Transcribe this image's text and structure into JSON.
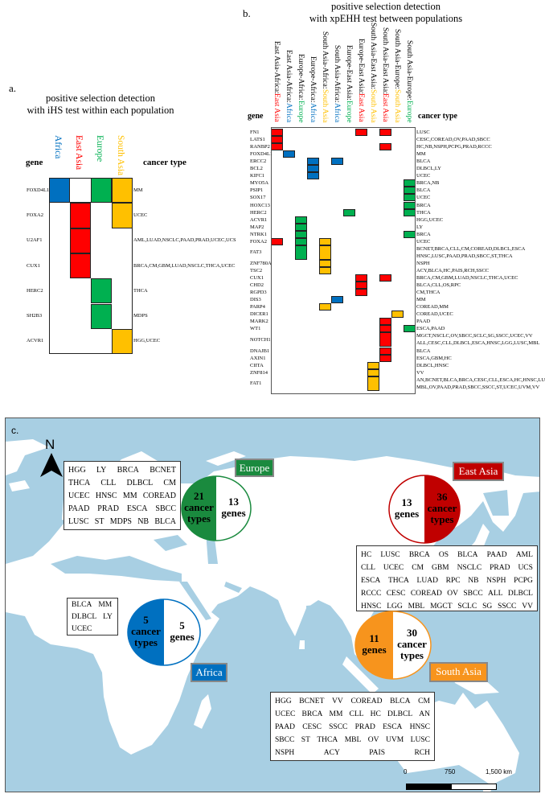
{
  "colors": {
    "africa": "#0070c0",
    "east_asia": "#ff0000",
    "europe": "#00b050",
    "south_asia": "#ffc000",
    "map_water": "#a8cfe3",
    "map_europe": "#1a8a3e",
    "map_africa": "#0070c0",
    "map_east_asia": "#c00000",
    "map_south_asia": "#f7941d"
  },
  "panel_a": {
    "label": "a.",
    "title": [
      "positive selection detection",
      "with iHS test within each population"
    ],
    "gene_header": "gene",
    "cancer_header": "cancer type",
    "columns": [
      {
        "name": "Africa",
        "color": "#0070c0"
      },
      {
        "name": "East Asia",
        "color": "#ff0000"
      },
      {
        "name": "Europe",
        "color": "#00b050"
      },
      {
        "name": "South Asia",
        "color": "#ffc000"
      }
    ],
    "rows": [
      {
        "gene": "FOXD4L1",
        "cancer": "MM",
        "cols": [
          0,
          2,
          3
        ]
      },
      {
        "gene": "FOXA2",
        "cancer": "UCEC",
        "cols": [
          1,
          3
        ]
      },
      {
        "gene": "U2AF1",
        "cancer": "AML,LUAD,NSCLC,PAAD,PRAD,UCEC,UCS",
        "cols": [
          1
        ]
      },
      {
        "gene": "CUX1",
        "cancer": "BRCA,CM,GBM,LUAD,NSCLC,THCA,UCEC",
        "cols": [
          1
        ]
      },
      {
        "gene": "HERC2",
        "cancer": "THCA",
        "cols": [
          2
        ]
      },
      {
        "gene": "SH2B3",
        "cancer": "MDPS",
        "cols": [
          2
        ]
      },
      {
        "gene": "ACVR1",
        "cancer": "HGG,UCEC",
        "cols": [
          3
        ]
      }
    ]
  },
  "panel_b": {
    "label": "b.",
    "title": [
      "positive selection detection",
      "with xpEHH test between populations"
    ],
    "gene_header": "gene",
    "cancer_header": "cancer type",
    "columns": [
      {
        "pair": "East Asia-Africa: ",
        "pop": "East Asia",
        "color": "#ff0000"
      },
      {
        "pair": "East Asia-Africa: ",
        "pop": "Africa",
        "color": "#0070c0"
      },
      {
        "pair": "Europe-Africa: ",
        "pop": "Europe",
        "color": "#00b050"
      },
      {
        "pair": "Europe-Africa: ",
        "pop": "Africa",
        "color": "#0070c0"
      },
      {
        "pair": "South Asia-Africa: ",
        "pop": "South Asia",
        "color": "#ffc000"
      },
      {
        "pair": "South Asia-Africa: ",
        "pop": "Africa",
        "color": "#0070c0"
      },
      {
        "pair": "Europe-East Asia: ",
        "pop": "Europe",
        "color": "#00b050"
      },
      {
        "pair": "Europe-East Asia: ",
        "pop": "East Asia",
        "color": "#ff0000"
      },
      {
        "pair": "South Asia-East Asia: ",
        "pop": "South Asia",
        "color": "#ffc000"
      },
      {
        "pair": "South Asia-East Asia: ",
        "pop": "East Asia",
        "color": "#ff0000"
      },
      {
        "pair": "South Asia-Europe: ",
        "pop": "South Asia",
        "color": "#ffc000"
      },
      {
        "pair": "South Asia-Europe: ",
        "pop": "Europe",
        "color": "#00b050"
      }
    ],
    "rows": [
      {
        "gene": "FN1",
        "cancer": [
          "LUSC"
        ],
        "cols": [
          0,
          7,
          9
        ]
      },
      {
        "gene": "LATS1",
        "cancer": [
          "CESC,COREAD,OV,PAAD,SBCC"
        ],
        "cols": [
          0
        ]
      },
      {
        "gene": "RANBP2",
        "cancer": [
          "HC,NB,NSPH,PCPG,PRAD,RCCC"
        ],
        "cols": [
          0,
          9
        ]
      },
      {
        "gene": "FOXD4L1",
        "cancer": [
          "MM"
        ],
        "cols": [
          1
        ]
      },
      {
        "gene": "ERCC2",
        "cancer": [
          "BLCA"
        ],
        "cols": [
          3,
          5
        ]
      },
      {
        "gene": "BCL2",
        "cancer": [
          "DLBCL,LY"
        ],
        "cols": [
          3
        ]
      },
      {
        "gene": "KIFC1",
        "cancer": [
          "UCEC"
        ],
        "cols": [
          3
        ]
      },
      {
        "gene": "MYO5A",
        "cancer": [
          "BRCA,NB"
        ],
        "cols": [
          11
        ]
      },
      {
        "gene": "PSIP1",
        "cancer": [
          "BLCA"
        ],
        "cols": [
          11
        ]
      },
      {
        "gene": "SOX17",
        "cancer": [
          "UCEC"
        ],
        "cols": [
          11
        ]
      },
      {
        "gene": "HOXC13",
        "cancer": [
          "BRCA"
        ],
        "cols": [
          11
        ]
      },
      {
        "gene": "HERC2",
        "cancer": [
          "THCA"
        ],
        "cols": [
          6,
          11
        ]
      },
      {
        "gene": "ACVR1",
        "cancer": [
          "HGG,UCEC"
        ],
        "cols": [
          2
        ]
      },
      {
        "gene": "MAP2",
        "cancer": [
          "LY"
        ],
        "cols": [
          2
        ]
      },
      {
        "gene": "NTRK1",
        "cancer": [
          "BRCA"
        ],
        "cols": [
          2,
          11
        ]
      },
      {
        "gene": "FOXA2",
        "cancer": [
          "UCEC"
        ],
        "cols": [
          0,
          2,
          4
        ]
      },
      {
        "gene": "FAT3",
        "cancer": [
          "BCNET,BRCA,CLL,CM,COREAD,DLBCL,ESCA",
          "HNSC,LUSC,PAAD,PRAD,SBCC,ST,THCA"
        ],
        "cols": [
          2,
          4
        ]
      },
      {
        "gene": "ZNF780A",
        "cancer": [
          "NSPH"
        ],
        "cols": [
          4
        ]
      },
      {
        "gene": "TSC2",
        "cancer": [
          "ACY,BLCA,HC,PAIS,RCH,SSCC"
        ],
        "cols": [
          4
        ]
      },
      {
        "gene": "CUX1",
        "cancer": [
          "BRCA,CM,GBM,LUAD,NSCLC,THCA,UCEC"
        ],
        "cols": [
          7,
          9
        ]
      },
      {
        "gene": "CHD2",
        "cancer": [
          "BLCA,CLL,OS,RPC"
        ],
        "cols": [
          7
        ]
      },
      {
        "gene": "RGPD3",
        "cancer": [
          "CM,THCA"
        ],
        "cols": [
          7
        ]
      },
      {
        "gene": "DIS3",
        "cancer": [
          "MM"
        ],
        "cols": [
          5
        ]
      },
      {
        "gene": "PARP4",
        "cancer": [
          "COREAD,MM"
        ],
        "cols": [
          4
        ]
      },
      {
        "gene": "DICER1",
        "cancer": [
          "COREAD,UCEC"
        ],
        "cols": [
          10
        ]
      },
      {
        "gene": "MARK2",
        "cancer": [
          "PAAD"
        ],
        "cols": [
          9
        ]
      },
      {
        "gene": "WT1",
        "cancer": [
          "ESCA,PAAD"
        ],
        "cols": [
          9,
          11
        ]
      },
      {
        "gene": "NOTCH1",
        "cancer": [
          "MGCT,NSCLC,OV,SBCC,SCLC,SG,SSCC,UCEC,VV",
          "ALL,CESC,CLL,DLBCL,ESCA,HNSC,LGG,LUSC,MBL"
        ],
        "cols": [
          9
        ]
      },
      {
        "gene": "DNAJB1",
        "cancer": [
          "BLCA"
        ],
        "cols": [
          9
        ]
      },
      {
        "gene": "AXIN1",
        "cancer": [
          "ESCA,GBM,HC"
        ],
        "cols": [
          9
        ]
      },
      {
        "gene": "CIITA",
        "cancer": [
          "DLBCL,HNSC"
        ],
        "cols": [
          8
        ]
      },
      {
        "gene": "ZNF814",
        "cancer": [
          "VV"
        ],
        "cols": [
          8
        ]
      },
      {
        "gene": "FAT1",
        "cancer": [
          "AN,BCNET,BLCA,BRCA,CESC,CLL,ESCA,HC,HNSC,LUSC",
          "MBL,OV,PAAD,PRAD,SBCC,SSCC,ST,UCEC,UVM,VV"
        ],
        "cols": [
          8
        ]
      }
    ]
  },
  "panel_c": {
    "label": "c.",
    "north": "N",
    "europe": {
      "name": "Europe",
      "genes": "13",
      "genes_label": "genes",
      "cancer": "21",
      "cancer_label": [
        "cancer",
        "types"
      ],
      "list": [
        [
          "HGG",
          "LY",
          "BRCA",
          "BCNET"
        ],
        [
          "THCA",
          "CLL",
          "DLBCL",
          "CM"
        ],
        [
          "UCEC",
          "HNSC",
          "MM",
          "COREAD"
        ],
        [
          "PAAD",
          "PRAD",
          "ESCA",
          "SBCC"
        ],
        [
          "LUSC",
          "ST",
          "MDPS",
          "NB",
          "BLCA"
        ]
      ]
    },
    "east_asia": {
      "name": "East Asia",
      "genes": "13",
      "genes_label": "genes",
      "cancer": "36",
      "cancer_label": [
        "cancer",
        "types"
      ],
      "list": [
        [
          "HC",
          "LUSC",
          "BRCA",
          "OS",
          "BLCA",
          "PAAD",
          "AML"
        ],
        [
          "CLL",
          "UCEC",
          "CM",
          "GBM",
          "NSCLC",
          "PRAD",
          "UCS"
        ],
        [
          "ESCA",
          "THCA",
          "LUAD",
          "RPC",
          "NB",
          "NSPH",
          "PCPG"
        ],
        [
          "RCCC",
          "CESC",
          "COREAD",
          "OV",
          "SBCC",
          "ALL",
          "DLBCL"
        ],
        [
          "HNSC",
          "LGG",
          "MBL",
          "MGCT",
          "SCLC",
          "SG",
          "SSCC",
          "VV"
        ]
      ]
    },
    "africa": {
      "name": "Africa",
      "genes": "5",
      "genes_label": "genes",
      "cancer": "5",
      "cancer_label": [
        "cancer",
        "types"
      ],
      "list": [
        [
          "BLCA",
          "MM"
        ],
        [
          "DLBCL",
          "LY"
        ],
        [
          "UCEC"
        ]
      ]
    },
    "south_asia": {
      "name": "South Asia",
      "genes": "11",
      "genes_label": "genes",
      "cancer": "30",
      "cancer_label": [
        "cancer",
        "types"
      ],
      "list": [
        [
          "HGG",
          "BCNET",
          "VV",
          "COREAD",
          "BLCA",
          "CM"
        ],
        [
          "UCEC",
          "BRCA",
          "MM",
          "CLL",
          "HC",
          "DLBCL",
          "AN"
        ],
        [
          "PAAD",
          "CESC",
          "SSCC",
          "PRAD",
          "ESCA",
          "HNSC"
        ],
        [
          "SBCC",
          "ST",
          "THCA",
          "MBL",
          "OV",
          "UVM",
          "LUSC"
        ],
        [
          "NSPH",
          "ACY",
          "PAIS",
          "RCH"
        ]
      ]
    },
    "scale": {
      "ticks": [
        "0",
        "750",
        "1,500 km"
      ]
    }
  }
}
